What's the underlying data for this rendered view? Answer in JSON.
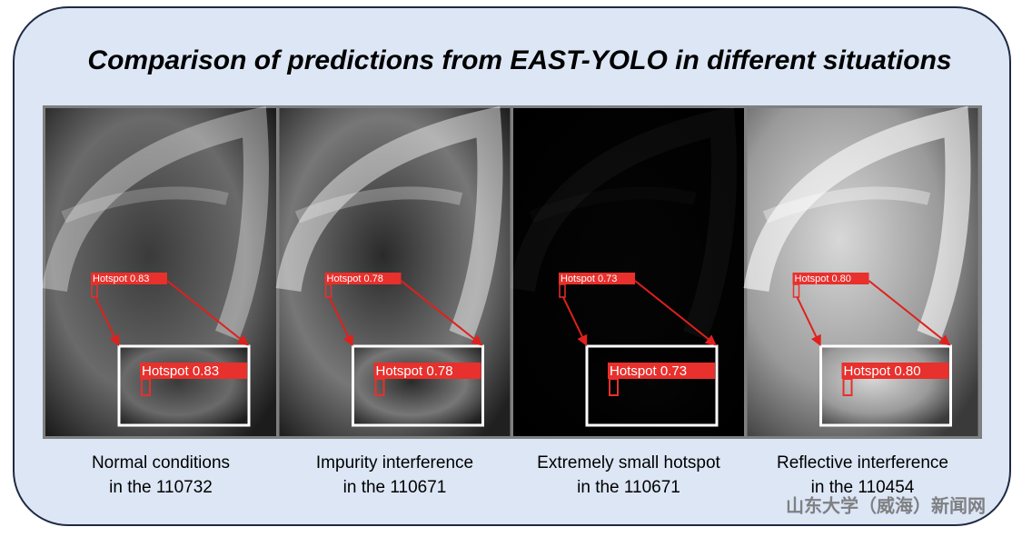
{
  "title": "Comparison of predictions from EAST-YOLO in different situations",
  "panels": [
    {
      "detection": "Hotspot 0.83",
      "caption": [
        "Normal conditions",
        "in the 110732"
      ]
    },
    {
      "detection": "Hotspot 0.78",
      "caption": [
        "Impurity interference",
        "in the 110671"
      ]
    },
    {
      "detection": "Hotspot 0.73",
      "caption": [
        "Extremely small hotspot",
        "in the 110671"
      ]
    },
    {
      "detection": "Hotspot 0.80",
      "caption": [
        "Reflective interference",
        "in the 110454"
      ]
    }
  ],
  "watermark": "山东大学（威海）新闻网"
}
